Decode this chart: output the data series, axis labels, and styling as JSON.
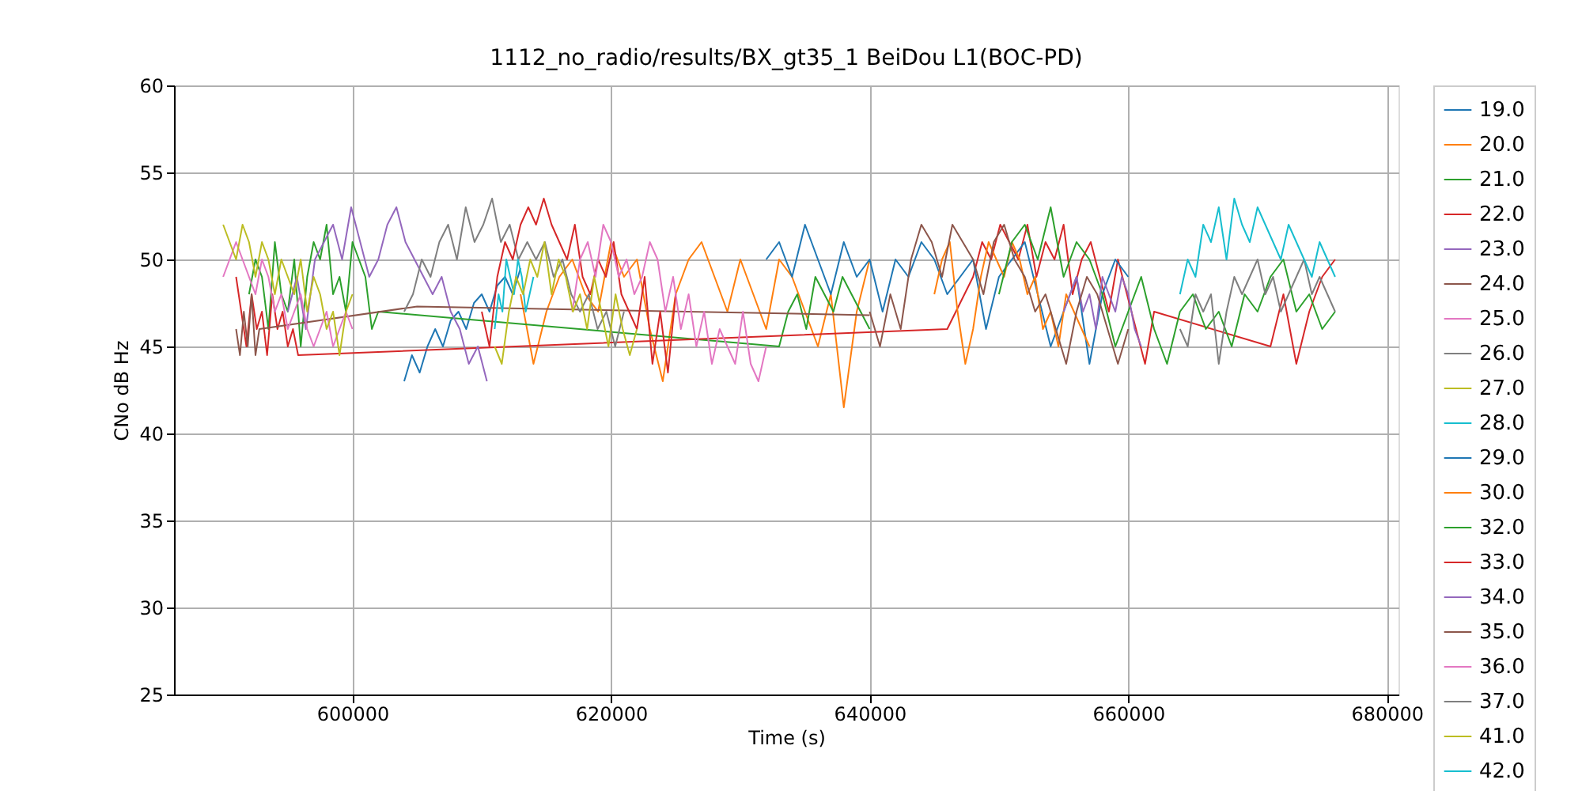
{
  "chart_data": {
    "type": "line",
    "title": "1112_no_radio/results/BX_gt35_1 BeiDou L1(BOC-PD)",
    "xlabel": "Time (s)",
    "ylabel": "CNo dB Hz",
    "xlim": [
      586200,
      680900
    ],
    "ylim": [
      25,
      60
    ],
    "xticks": [
      600000,
      620000,
      640000,
      660000,
      680000
    ],
    "yticks": [
      25,
      30,
      35,
      40,
      45,
      50,
      55,
      60
    ],
    "grid": true,
    "legend": "right",
    "series": [
      {
        "name": "19.0",
        "color": "#1f77b4",
        "x": [
          604000,
          604600,
          605200,
          605800,
          606400,
          607000,
          607600,
          608200,
          608800,
          609400,
          610000,
          610600,
          611200,
          611800,
          612400,
          613000
        ],
        "values": [
          43,
          44.5,
          43.5,
          45,
          46,
          45,
          46.5,
          47,
          46,
          47.5,
          48,
          47,
          48.5,
          49,
          48,
          49.5
        ]
      },
      {
        "name": "20.0",
        "color": "#ff7f0e",
        "x": [
          613000,
          614000,
          615000,
          616000,
          617000,
          618000,
          619000,
          620000,
          621000,
          622000,
          623000,
          624000,
          625000,
          626000,
          627000,
          628000,
          629000,
          630000,
          631000,
          632000,
          633000,
          634000,
          635000,
          636000,
          637000,
          638000,
          639000,
          640000
        ],
        "values": [
          48,
          44,
          47,
          49,
          50,
          48,
          47,
          51,
          49,
          50,
          46,
          43,
          48,
          50,
          51,
          49,
          47,
          50,
          48,
          46,
          50,
          49,
          47,
          45,
          48,
          41.5,
          47,
          50
        ]
      },
      {
        "name": "21.0",
        "color": "#2ca02c",
        "x": [
          592000,
          592500,
          593000,
          593500,
          594000,
          594500,
          595000,
          595500,
          596000,
          596500,
          597000,
          597500,
          598000,
          598500,
          599000,
          599500,
          600000,
          600500,
          601000,
          601500,
          602000,
          633000,
          633700,
          634400,
          635100,
          635800,
          636500,
          637200,
          637900,
          638600,
          639300,
          640000
        ],
        "values": [
          48,
          50,
          49,
          46,
          51,
          48,
          47,
          50,
          45,
          49,
          51,
          50,
          52,
          48,
          49,
          47,
          51,
          50,
          49,
          46,
          47,
          45,
          47,
          48,
          46,
          49,
          48,
          47,
          49,
          48,
          47,
          46
        ]
      },
      {
        "name": "22.0",
        "color": "#d62728",
        "x": [
          591000,
          591400,
          591800,
          592200,
          592600,
          593000,
          593400,
          593800,
          594200,
          594600,
          595000,
          595400,
          595800,
          646000,
          648000,
          648700,
          649400,
          650100,
          650800,
          651500,
          652200,
          652900,
          653600,
          654300,
          655000,
          655700,
          656400,
          657100,
          657800,
          658500,
          659200,
          659900,
          660600,
          661300,
          662000,
          671000,
          672000,
          673000,
          674000,
          675000,
          676000
        ],
        "values": [
          49,
          47,
          45,
          48,
          46,
          47,
          44.5,
          48,
          46,
          47,
          45,
          46,
          44.5,
          46,
          49,
          51,
          50,
          52,
          51,
          50,
          52,
          49,
          51,
          50,
          52,
          48,
          50,
          51,
          49,
          47,
          50,
          48,
          46,
          44,
          47,
          45,
          48,
          44,
          47,
          49,
          50
        ]
      },
      {
        "name": "23.0",
        "color": "#9467bd",
        "x": [
          595000,
          595700,
          596400,
          597100,
          597800,
          598500,
          599200,
          599900,
          600600,
          601300,
          602000,
          602700,
          603400,
          604100,
          604800,
          605500,
          606200,
          606900,
          607600,
          608300,
          609000,
          609700,
          610400
        ],
        "values": [
          47,
          49,
          46,
          50,
          51,
          52,
          50,
          53,
          51,
          49,
          50,
          52,
          53,
          51,
          50,
          49,
          48,
          49,
          47,
          46,
          44,
          45,
          43
        ]
      },
      {
        "name": "24.0",
        "color": "#8c564b",
        "x": [
          591000,
          591300,
          591600,
          591900,
          592200,
          592500,
          592800,
          605000,
          640000
        ],
        "values": [
          46,
          44.5,
          47,
          45,
          48,
          44.5,
          46,
          47.3,
          46.8
        ]
      },
      {
        "name": "25.0",
        "color": "#e377c2",
        "x": [
          590000,
          590500,
          591000,
          591500,
          592000,
          592500,
          593000,
          593500,
          594000,
          594500,
          595000,
          595500,
          596000,
          596500,
          597000,
          597500,
          598000,
          598500,
          599000,
          599500,
          600000
        ],
        "values": [
          49,
          50,
          51,
          50,
          49,
          48,
          50,
          49,
          47,
          48,
          46,
          47,
          48,
          46,
          45,
          46,
          47,
          45,
          46,
          47,
          46
        ]
      },
      {
        "name": "26.0",
        "color": "#7f7f7f",
        "x": [
          604000,
          604680,
          605360,
          606040,
          606720,
          607400,
          608080,
          608760,
          609440,
          610120,
          610800,
          611480,
          612160,
          612840,
          613520,
          614200,
          614880,
          615560,
          616240,
          616920,
          617600,
          618280,
          618960,
          619640,
          620320,
          621000
        ],
        "values": [
          47,
          48,
          50,
          49,
          51,
          52,
          50,
          53,
          51,
          52,
          53.5,
          51,
          52,
          50,
          51,
          50,
          51,
          49,
          50,
          48,
          47,
          48,
          46,
          47,
          45,
          47
        ]
      },
      {
        "name": "27.0",
        "color": "#bcbd22",
        "x": [
          590000,
          590500,
          591000,
          591500,
          592000,
          592500,
          593000,
          593500,
          594000,
          594500,
          595000,
          595500,
          596000,
          596500,
          597000,
          597500,
          598000,
          598500,
          599000,
          599500,
          600000
        ],
        "values": [
          52,
          51,
          50,
          52,
          51,
          49,
          51,
          50,
          48,
          50,
          49,
          48,
          50,
          47,
          49,
          48,
          46,
          47,
          44.5,
          47,
          48
        ]
      },
      {
        "name": "28.0",
        "color": "#17becf",
        "x": [
          611000,
          611300,
          611600,
          611900,
          612200,
          612500,
          612800,
          613100,
          613400,
          613700,
          614000
        ],
        "values": [
          46,
          48,
          47,
          50,
          49,
          48,
          50,
          49,
          47,
          48,
          49
        ]
      },
      {
        "name": "29.0",
        "color": "#1f77b4",
        "x": [
          632000,
          633000,
          634000,
          635000,
          636000,
          637000,
          638000,
          639000,
          640000,
          641000,
          642000,
          643000,
          644000,
          645000,
          646000,
          647000,
          648000,
          649000,
          650000,
          651000,
          652000,
          653000,
          654000,
          655000,
          656000,
          657000,
          658000,
          659000,
          660000
        ],
        "values": [
          50,
          51,
          49,
          52,
          50,
          48,
          51,
          49,
          50,
          47,
          50,
          49,
          51,
          50,
          48,
          49,
          50,
          46,
          49,
          50,
          51,
          48,
          45,
          47,
          49,
          44,
          48,
          50,
          49
        ]
      },
      {
        "name": "30.0",
        "color": "#ff7f0e",
        "x": [
          645000,
          645600,
          646200,
          646800,
          647400,
          648000,
          648600,
          649200,
          649800,
          650400,
          651000,
          651600,
          652200,
          652800,
          653400,
          654000,
          654600,
          655200,
          655800,
          656400,
          657000
        ],
        "values": [
          48,
          50,
          51,
          47,
          44,
          46,
          49,
          51,
          50,
          49,
          51,
          50,
          48,
          49,
          46,
          47,
          45,
          48,
          47,
          46,
          45
        ]
      },
      {
        "name": "32.0",
        "color": "#2ca02c",
        "x": [
          650000,
          651000,
          652000,
          653000,
          654000,
          655000,
          656000,
          657000,
          658000,
          659000,
          660000,
          661000,
          662000,
          663000,
          664000,
          665000,
          666000,
          667000,
          668000,
          669000,
          670000,
          671000,
          672000,
          673000,
          674000,
          675000,
          676000
        ],
        "values": [
          48,
          51,
          52,
          50,
          53,
          49,
          51,
          50,
          48,
          45,
          47,
          49,
          46,
          44,
          47,
          48,
          46,
          47,
          45,
          48,
          47,
          49,
          50,
          47,
          48,
          46,
          47
        ]
      },
      {
        "name": "33.0",
        "color": "#d62728",
        "x": [
          610000,
          610600,
          611200,
          611800,
          612400,
          613000,
          613600,
          614200,
          614800,
          615400,
          616000,
          616600,
          617200,
          617800,
          618400,
          619000,
          619600,
          620200,
          620800,
          621400,
          622000,
          622600,
          623200,
          623800,
          624400,
          625000
        ],
        "values": [
          47,
          45,
          49,
          51,
          50,
          52,
          53,
          52,
          53.5,
          52,
          51,
          50,
          52,
          49,
          48,
          50,
          49,
          51,
          48,
          47,
          46,
          49,
          44,
          47,
          43.5,
          48
        ]
      },
      {
        "name": "34.0",
        "color": "#9467bd",
        "x": [
          655000,
          655500,
          656000,
          656500,
          657000,
          657500,
          658000,
          658500,
          659000,
          659500,
          660000,
          660500,
          661000
        ],
        "values": [
          47,
          48,
          49,
          47,
          48,
          46,
          49,
          48,
          47,
          49,
          48,
          46,
          45
        ]
      },
      {
        "name": "35.0",
        "color": "#8c564b",
        "x": [
          640000,
          640800,
          641600,
          642400,
          643200,
          644000,
          644800,
          645600,
          646400,
          647200,
          648000,
          648800,
          649600,
          650400,
          651200,
          652000,
          652800,
          653600,
          654400,
          655200,
          656000,
          656800,
          657600,
          658400,
          659200,
          660000
        ],
        "values": [
          47,
          45,
          48,
          46,
          50,
          52,
          51,
          49,
          52,
          51,
          50,
          48,
          51,
          52,
          50,
          49,
          47,
          48,
          46,
          44,
          47,
          49,
          48,
          46,
          44,
          46
        ]
      },
      {
        "name": "36.0",
        "color": "#e377c2",
        "x": [
          617000,
          617600,
          618200,
          618800,
          619400,
          620000,
          620600,
          621200,
          621800,
          622400,
          623000,
          623600,
          624200,
          624800,
          625400,
          626000,
          626600,
          627200,
          627800,
          628400,
          629000,
          629600,
          630200,
          630800,
          631400,
          632000
        ],
        "values": [
          47,
          50,
          51,
          49,
          52,
          51,
          49,
          50,
          48,
          49,
          51,
          50,
          47,
          49,
          46,
          48,
          45,
          47,
          44,
          46,
          45,
          44,
          47,
          44,
          43,
          45
        ]
      },
      {
        "name": "37.0",
        "color": "#7f7f7f",
        "x": [
          664000,
          664600,
          665200,
          665800,
          666400,
          667000,
          667600,
          668200,
          668800,
          669400,
          670000,
          670600,
          671200,
          671800,
          672400,
          673000,
          673600,
          674200,
          674800,
          675400,
          676000
        ],
        "values": [
          46,
          45,
          48,
          47,
          48,
          44,
          47,
          49,
          48,
          49,
          50,
          48,
          49,
          47,
          48,
          49,
          50,
          48,
          49,
          48,
          47
        ]
      },
      {
        "name": "41.0",
        "color": "#bcbd22",
        "x": [
          611000,
          611550,
          612100,
          612650,
          613200,
          613750,
          614300,
          614850,
          615400,
          615950,
          616500,
          617050,
          617600,
          618150,
          618700,
          619250,
          619800,
          620350,
          620900,
          621450,
          622000
        ],
        "values": [
          45,
          44,
          47,
          49,
          48,
          50,
          49,
          51,
          48,
          50,
          49,
          47,
          48,
          46,
          49,
          47,
          45,
          48,
          46,
          44.5,
          46
        ]
      },
      {
        "name": "42.0",
        "color": "#17becf",
        "x": [
          664000,
          664600,
          665200,
          665800,
          666400,
          667000,
          667600,
          668200,
          668800,
          669400,
          670000,
          670600,
          671200,
          671800,
          672400,
          673000,
          673600,
          674200,
          674800,
          675400,
          676000
        ],
        "values": [
          48,
          50,
          49,
          52,
          51,
          53,
          50,
          53.5,
          52,
          51,
          53,
          52,
          51,
          50,
          52,
          51,
          50,
          49,
          51,
          50,
          49
        ]
      }
    ]
  }
}
